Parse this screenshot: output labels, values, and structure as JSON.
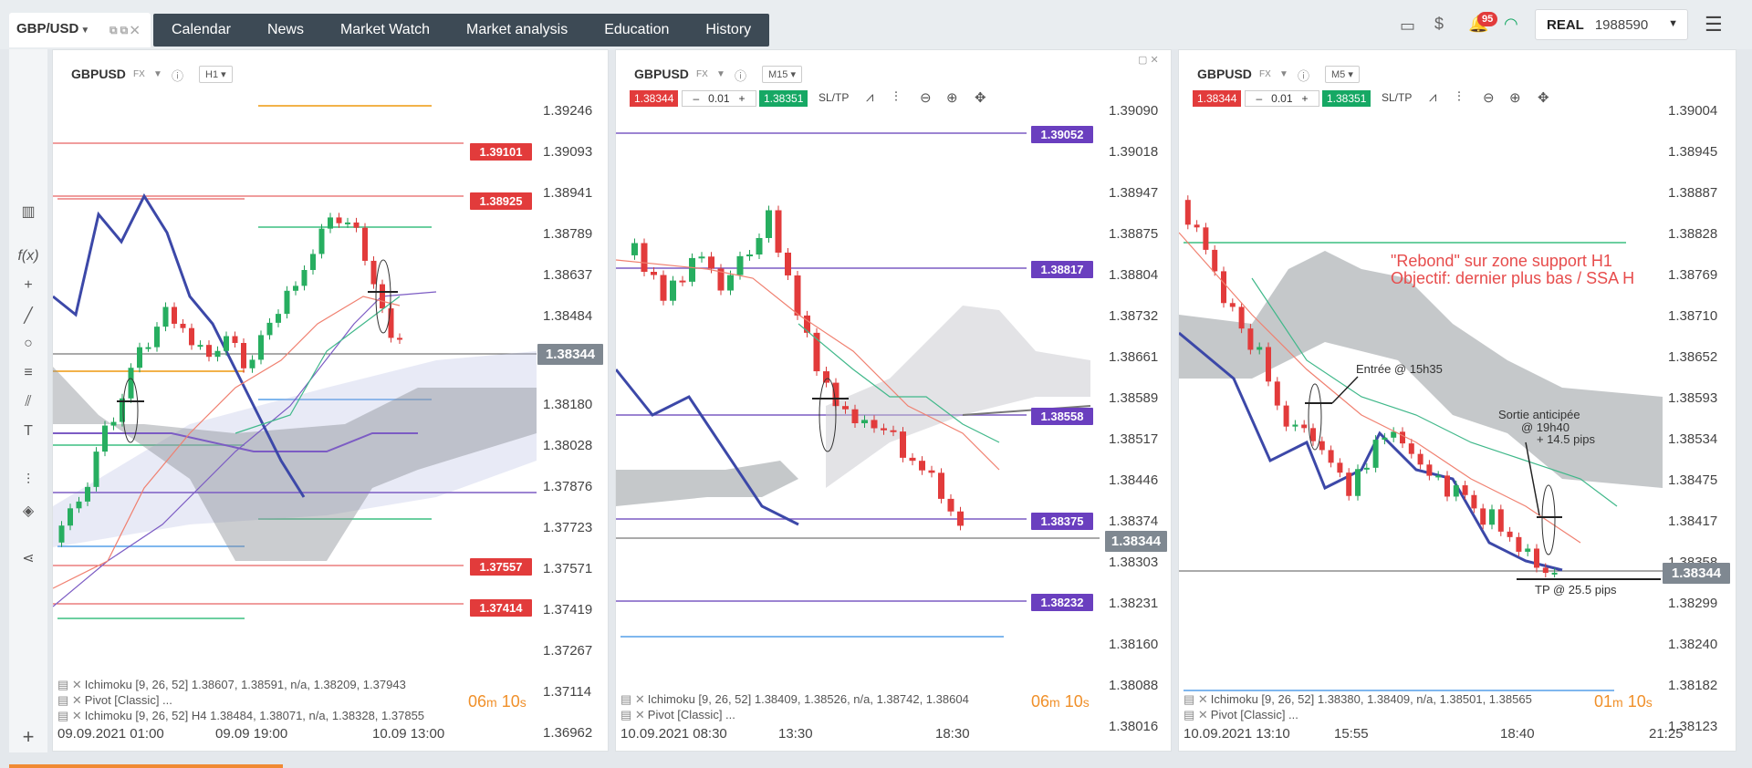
{
  "symbol_tab": {
    "label": "GBP/USD"
  },
  "nav": [
    "Calendar",
    "News",
    "Market Watch",
    "Market analysis",
    "Education",
    "History"
  ],
  "notifications": {
    "count": "95"
  },
  "account": {
    "type": "REAL",
    "number": "1988590"
  },
  "colors": {
    "bid": "#e23b3b",
    "ask": "#16a864",
    "purple": "#6a3fbf",
    "blue_line": "#3c48a8",
    "accent": "#f0902a"
  },
  "left_toolbar": [
    "columns-icon",
    "function-icon",
    "crosshair-icon",
    "pencil-line-icon",
    "circle-icon",
    "fibonacci-icon",
    "trend-icon",
    "text-icon",
    "indicator-icon",
    "layers-icon",
    "share-icon"
  ],
  "panels": [
    {
      "symbol": "GBPUSD",
      "asset": "FX",
      "timeframe": "H1",
      "y_labels": [
        "1.39246",
        "1.39093",
        "1.38941",
        "1.38789",
        "1.38637",
        "1.38484",
        "1.38180",
        "1.38028",
        "1.37876",
        "1.37723",
        "1.37571",
        "1.37419",
        "1.37267",
        "1.37114",
        "1.36962"
      ],
      "price_boxes": [
        {
          "v": "1.39101",
          "c": "#e23b3b"
        },
        {
          "v": "1.38925",
          "c": "#e23b3b"
        },
        {
          "v": "1.37557",
          "c": "#e23b3b"
        },
        {
          "v": "1.37414",
          "c": "#e23b3b"
        }
      ],
      "current": "1.38344",
      "x_labels": [
        "09.09.2021 01:00",
        "09.09 19:00",
        "10.09 13:00"
      ],
      "indicators": [
        "Ichimoku [9, 26, 52] 1.38607, 1.38591, n/a, 1.38209, 1.37943",
        "Pivot [Classic] ...",
        "Ichimoku [9, 26, 52] H4 1.38484, 1.38071, n/a, 1.38328, 1.37855"
      ],
      "timer": {
        "m": "06",
        "s": "10"
      }
    },
    {
      "symbol": "GBPUSD",
      "asset": "FX",
      "timeframe": "M15",
      "bid": "1.38344",
      "lot": "0.01",
      "ask": "1.38351",
      "sltp": "SL/TP",
      "y_labels": [
        "1.39090",
        "1.39018",
        "1.38947",
        "1.38875",
        "1.38804",
        "1.38732",
        "1.38661",
        "1.38589",
        "1.38517",
        "1.38446",
        "1.38374",
        "1.38303",
        "1.38231",
        "1.38160",
        "1.38088",
        "1.38016"
      ],
      "price_boxes": [
        {
          "v": "1.39052",
          "c": "#6a3fbf"
        },
        {
          "v": "1.38817",
          "c": "#6a3fbf"
        },
        {
          "v": "1.38558",
          "c": "#6a3fbf"
        },
        {
          "v": "1.38375",
          "c": "#6a3fbf"
        },
        {
          "v": "1.38232",
          "c": "#6a3fbf"
        }
      ],
      "current": "1.38344",
      "x_labels": [
        "10.09.2021 08:30",
        "13:30",
        "18:30"
      ],
      "indicators": [
        "Ichimoku [9, 26, 52] 1.38409, 1.38526, n/a, 1.38742, 1.38604",
        "Pivot [Classic] ..."
      ],
      "timer": {
        "m": "06",
        "s": "10"
      }
    },
    {
      "symbol": "GBPUSD",
      "asset": "FX",
      "timeframe": "M5",
      "bid": "1.38344",
      "lot": "0.01",
      "ask": "1.38351",
      "sltp": "SL/TP",
      "y_labels": [
        "1.39004",
        "1.38945",
        "1.38887",
        "1.38828",
        "1.38769",
        "1.38710",
        "1.38652",
        "1.38593",
        "1.38534",
        "1.38475",
        "1.38417",
        "1.38358",
        "1.38299",
        "1.38240",
        "1.38182",
        "1.38123"
      ],
      "current": "1.38344",
      "x_labels": [
        "10.09.2021 13:10",
        "15:55",
        "18:40",
        "21:25"
      ],
      "indicators": [
        "Ichimoku [9, 26, 52] 1.38380, 1.38409, n/a, 1.38501, 1.38565",
        "Pivot [Classic] ..."
      ],
      "timer": {
        "m": "01",
        "s": "10"
      },
      "annotations": {
        "title1": "\"Rebond\" sur zone support H1",
        "title2": "Objectif: dernier plus bas / SSA H",
        "entry": "Entrée @ 15h35",
        "exit1": "Sortie anticipée",
        "exit2": "@ 19h40",
        "exit3": "+ 14.5 pips",
        "tp": "TP @ 25.5 pips"
      }
    }
  ]
}
